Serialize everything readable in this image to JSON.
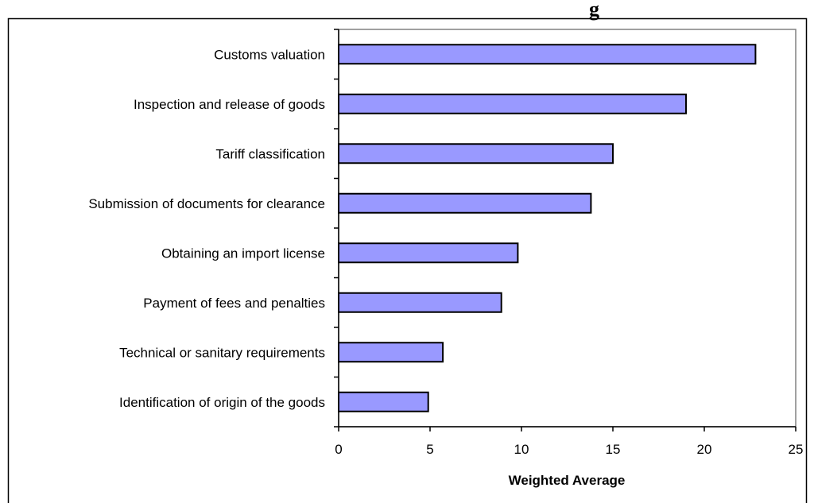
{
  "chart_data": {
    "type": "bar",
    "orientation": "horizontal",
    "title": "",
    "title_fragment": "g",
    "xlabel": "Weighted Average",
    "ylabel": "",
    "categories": [
      "Customs valuation",
      "Inspection and release of goods",
      "Tariff classification",
      "Submission of documents for clearance",
      "Obtaining an import license",
      "Payment of fees and penalties",
      "Technical or sanitary requirements",
      "Identification of origin of the goods"
    ],
    "values": [
      22.8,
      19.0,
      15.0,
      13.8,
      9.8,
      8.9,
      5.7,
      4.9
    ],
    "xlim": [
      0,
      25
    ],
    "xticks": [
      "0",
      "5",
      "10",
      "15",
      "20",
      "25"
    ],
    "grid": false,
    "legend": "none",
    "bar_color": "#9999ff",
    "bar_edge_color": "#000000",
    "frame_color": "#808080"
  }
}
